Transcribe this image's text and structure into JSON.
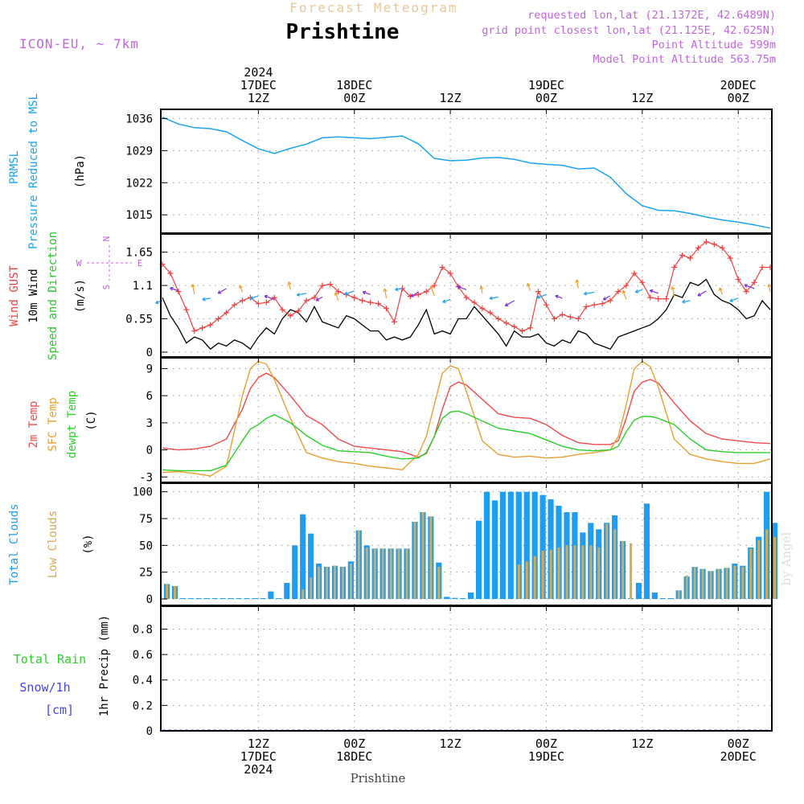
{
  "header": {
    "supertitle": "Forecast Meteogram",
    "title": "Prishtine",
    "model": "ICON-EU, ~ 7km",
    "requested": "requested lon,lat (21.1372E, 42.6489N)",
    "closest": "grid point closest lon,lat (21.125E, 42.625N)",
    "point_alt": "Point Altitude 599m",
    "model_alt": "Model Point Altitude 563.75m",
    "footer": "Prishtine",
    "watermark": "by Angel"
  },
  "colors": {
    "pressure": "#1aa3f0",
    "gust": "#f04040",
    "wind10": "#000000",
    "windarrow": "#2cc82c",
    "temp2m": "#f04a4a",
    "sfctemp": "#e8a030",
    "dewpt": "#2ad02a",
    "totalcloud": "#1e9ef0",
    "lowcloud": "#d4aa55",
    "rain": "#2ad02a",
    "snow": "#4444ee",
    "label_purple": "#c066e0"
  },
  "time_axis": {
    "top_labels": [
      {
        "hour": 12,
        "lines": [
          "2024",
          "17DEC",
          "12Z"
        ]
      },
      {
        "hour": 24,
        "lines": [
          "18DEC",
          "00Z"
        ]
      },
      {
        "hour": 36,
        "lines": [
          "12Z"
        ]
      },
      {
        "hour": 48,
        "lines": [
          "19DEC",
          "00Z"
        ]
      },
      {
        "hour": 60,
        "lines": [
          "12Z"
        ]
      },
      {
        "hour": 72,
        "lines": [
          "20DEC",
          "00Z"
        ]
      }
    ],
    "bottom_labels": [
      {
        "hour": 12,
        "lines": [
          "12Z",
          "17DEC",
          "2024"
        ]
      },
      {
        "hour": 24,
        "lines": [
          "00Z",
          "18DEC"
        ]
      },
      {
        "hour": 36,
        "lines": [
          "12Z"
        ]
      },
      {
        "hour": 48,
        "lines": [
          "00Z",
          "19DEC"
        ]
      },
      {
        "hour": 60,
        "lines": [
          "12Z"
        ]
      },
      {
        "hour": 72,
        "lines": [
          "00Z",
          "20DEC"
        ]
      }
    ]
  },
  "panels": {
    "pressure": {
      "labels": [
        "PRMSL",
        "Pressure Reduced to MSL"
      ],
      "unit": "(hPa)",
      "ticks": [
        "1036",
        "1029",
        "1022",
        "1015"
      ]
    },
    "wind": {
      "labels": [
        "Wind GUST",
        "10m Wind",
        "Speed and Direction"
      ],
      "unit": "(m/s)",
      "ticks": [
        "1.65",
        "1.1",
        "0.55",
        "0"
      ],
      "compass": [
        "N",
        "W",
        "E",
        "S"
      ]
    },
    "temp": {
      "labels": [
        "2m Temp",
        "SFC Temp",
        "dewpt Temp"
      ],
      "unit": "(C)",
      "ticks": [
        "9",
        "6",
        "3",
        "0",
        "-3"
      ]
    },
    "cloud": {
      "labels": [
        "Total Clouds",
        "Low Clouds"
      ],
      "unit": "(%)",
      "ticks": [
        "100",
        "75",
        "50",
        "25",
        "0"
      ]
    },
    "precip": {
      "labels": [
        "Total Rain",
        "Snow/1h",
        "[cm]"
      ],
      "unit": "1hr Precip (mm)",
      "ticks": [
        "0.8",
        "0.6",
        "0.4",
        "0.2",
        "0"
      ]
    }
  },
  "chart_data": [
    {
      "type": "line",
      "name": "pressure",
      "x": [
        0,
        2,
        4,
        6,
        8,
        10,
        12,
        14,
        16,
        18,
        20,
        22,
        24,
        26,
        28,
        30,
        32,
        34,
        36,
        38,
        40,
        42,
        44,
        46,
        48,
        50,
        52,
        54,
        56,
        58,
        60,
        62,
        64,
        66,
        68,
        70,
        72,
        74,
        76
      ],
      "series": [
        {
          "name": "PRMSL",
          "values": [
            1036.3,
            1034.8,
            1034.0,
            1033.8,
            1033.1,
            1031.2,
            1029.4,
            1028.4,
            1029.5,
            1030.4,
            1031.8,
            1032.0,
            1031.8,
            1031.6,
            1031.9,
            1032.2,
            1030.5,
            1027.3,
            1026.8,
            1026.9,
            1027.4,
            1027.5,
            1027.1,
            1026.3,
            1026.0,
            1025.8,
            1025.0,
            1025.2,
            1023.2,
            1019.6,
            1017.0,
            1016.0,
            1015.9,
            1015.3,
            1014.5,
            1013.9,
            1013.4,
            1012.8,
            1012.1
          ]
        }
      ],
      "ylim": [
        1011,
        1038
      ]
    },
    {
      "type": "line",
      "name": "wind",
      "x": [
        0,
        1,
        2,
        3,
        4,
        5,
        6,
        7,
        8,
        9,
        10,
        11,
        12,
        13,
        14,
        15,
        16,
        17,
        18,
        19,
        20,
        21,
        22,
        23,
        24,
        25,
        26,
        27,
        28,
        29,
        30,
        31,
        32,
        33,
        34,
        35,
        36,
        37,
        38,
        39,
        40,
        41,
        42,
        43,
        44,
        45,
        46,
        47,
        48,
        49,
        50,
        51,
        52,
        53,
        54,
        55,
        56,
        57,
        58,
        59,
        60,
        61,
        62,
        63,
        64,
        65,
        66,
        67,
        68,
        69,
        70,
        71,
        72,
        73,
        74,
        75,
        76
      ],
      "series": [
        {
          "name": "Wind GUST",
          "values": [
            1.45,
            1.3,
            1.0,
            0.7,
            0.35,
            0.4,
            0.45,
            0.55,
            0.65,
            0.78,
            0.85,
            0.9,
            0.8,
            0.82,
            0.9,
            0.7,
            0.6,
            0.68,
            0.85,
            0.9,
            1.1,
            1.12,
            1.0,
            0.95,
            0.9,
            0.85,
            0.82,
            0.8,
            0.72,
            0.5,
            1.05,
            0.92,
            0.95,
            1.0,
            1.1,
            1.4,
            1.3,
            1.08,
            0.9,
            0.82,
            0.72,
            0.65,
            0.55,
            0.48,
            0.42,
            0.35,
            0.4,
            1.0,
            0.78,
            0.55,
            0.62,
            0.58,
            0.55,
            0.75,
            0.78,
            0.8,
            0.85,
            1.0,
            1.1,
            1.3,
            1.15,
            0.9,
            0.88,
            0.88,
            1.4,
            1.6,
            1.55,
            1.72,
            1.82,
            1.78,
            1.72,
            1.55,
            1.2,
            1.0,
            1.15,
            1.4,
            1.4
          ]
        },
        {
          "name": "10m Wind",
          "values": [
            0.9,
            0.6,
            0.4,
            0.15,
            0.25,
            0.2,
            0.05,
            0.15,
            0.1,
            0.2,
            0.15,
            0.05,
            0.25,
            0.4,
            0.3,
            0.55,
            0.7,
            0.65,
            0.5,
            0.75,
            0.5,
            0.45,
            0.4,
            0.6,
            0.55,
            0.45,
            0.35,
            0.35,
            0.2,
            0.25,
            0.2,
            0.25,
            0.45,
            0.7,
            0.3,
            0.35,
            0.3,
            0.55,
            0.55,
            0.75,
            0.6,
            0.45,
            0.3,
            0.1,
            0.35,
            0.25,
            0.25,
            0.3,
            0.15,
            0.1,
            0.2,
            0.15,
            0.35,
            0.3,
            0.15,
            0.1,
            0.05,
            0.25,
            0.3,
            0.35,
            0.4,
            0.45,
            0.55,
            0.7,
            0.95,
            0.9,
            1.15,
            1.1,
            1.2,
            0.95,
            0.85,
            0.8,
            0.7,
            0.55,
            0.6,
            0.85,
            0.7
          ]
        }
      ],
      "ylim": [
        0,
        1.95
      ]
    },
    {
      "type": "line",
      "name": "temperature",
      "x": [
        0,
        2,
        4,
        6,
        8,
        10,
        11,
        12,
        13,
        14,
        16,
        18,
        20,
        22,
        24,
        26,
        28,
        30,
        32,
        33,
        34,
        35,
        36,
        37,
        38,
        40,
        42,
        44,
        46,
        48,
        50,
        52,
        54,
        56,
        57,
        58,
        59,
        60,
        61,
        62,
        64,
        66,
        68,
        70,
        72,
        74,
        76
      ],
      "series": [
        {
          "name": "2m Temp",
          "values": [
            0.2,
            0.0,
            0.1,
            0.4,
            1.2,
            4.5,
            6.8,
            8.0,
            8.5,
            8.0,
            6.0,
            3.8,
            2.8,
            1.2,
            0.4,
            0.2,
            0.0,
            -0.2,
            -0.8,
            -0.4,
            1.5,
            4.5,
            7.0,
            7.5,
            7.2,
            5.6,
            4.0,
            3.6,
            3.5,
            2.8,
            1.6,
            0.8,
            0.6,
            0.6,
            1.0,
            3.5,
            6.5,
            7.5,
            7.8,
            7.4,
            5.2,
            3.2,
            1.8,
            1.2,
            1.0,
            0.8,
            0.7
          ]
        },
        {
          "name": "SFC Temp",
          "values": [
            -2.5,
            -2.4,
            -2.6,
            -2.9,
            -1.8,
            6.0,
            9.0,
            9.8,
            9.5,
            7.8,
            3.5,
            -0.3,
            -0.9,
            -1.3,
            -1.5,
            -1.8,
            -2.0,
            -2.2,
            -0.5,
            1.5,
            5.0,
            8.5,
            9.3,
            9.0,
            6.5,
            1.0,
            -0.5,
            -0.8,
            -0.7,
            -0.9,
            -0.8,
            -0.5,
            -0.3,
            0.0,
            1.5,
            5.0,
            9.0,
            9.8,
            9.2,
            7.0,
            1.2,
            -0.5,
            -1.0,
            -1.3,
            -1.5,
            -1.5,
            -1.0
          ]
        },
        {
          "name": "dewpt Temp",
          "values": [
            -2.2,
            -2.3,
            -2.3,
            -2.3,
            -1.7,
            1.0,
            2.3,
            2.8,
            3.5,
            3.9,
            3.0,
            1.6,
            0.5,
            -0.1,
            -0.2,
            -0.3,
            -0.7,
            -1.0,
            -0.9,
            -0.3,
            1.5,
            3.5,
            4.2,
            4.3,
            4.0,
            3.2,
            2.4,
            2.1,
            1.8,
            1.1,
            0.4,
            0.0,
            -0.1,
            0.0,
            0.4,
            2.0,
            3.3,
            3.7,
            3.7,
            3.5,
            2.8,
            1.2,
            0.0,
            -0.2,
            -0.3,
            -0.3,
            -0.3
          ]
        }
      ],
      "ylim": [
        -3.5,
        10
      ]
    },
    {
      "type": "bar",
      "name": "clouds",
      "x": [
        0,
        1,
        2,
        3,
        4,
        5,
        6,
        7,
        8,
        9,
        10,
        11,
        12,
        13,
        14,
        15,
        16,
        17,
        18,
        19,
        20,
        21,
        22,
        23,
        24,
        25,
        26,
        27,
        28,
        29,
        30,
        31,
        32,
        33,
        34,
        35,
        36,
        37,
        38,
        39,
        40,
        41,
        42,
        43,
        44,
        45,
        46,
        47,
        48,
        49,
        50,
        51,
        52,
        53,
        54,
        55,
        56,
        57,
        58,
        59,
        60,
        61,
        62,
        63,
        64,
        65,
        66,
        67,
        68,
        69,
        70,
        71,
        72,
        73,
        74,
        75,
        76
      ],
      "series": [
        {
          "name": "Total Clouds",
          "values": [
            14,
            12,
            0,
            0,
            0,
            0,
            0,
            0,
            0,
            0,
            0,
            0,
            0,
            7,
            0,
            15,
            50,
            79,
            61,
            33,
            30,
            31,
            30,
            35,
            64,
            50,
            47,
            47,
            47,
            47,
            47,
            72,
            81,
            77,
            34,
            2,
            1,
            0,
            6,
            73,
            100,
            92,
            100,
            100,
            100,
            100,
            100,
            97,
            93,
            87,
            81,
            81,
            62,
            71,
            65,
            71,
            78,
            54,
            0,
            15,
            89,
            6,
            0,
            0,
            8,
            21,
            30,
            28,
            26,
            28,
            29,
            33,
            31,
            48,
            58,
            100,
            71
          ]
        },
        {
          "name": "Low Clouds",
          "values": [
            14,
            12,
            0,
            0,
            0,
            0,
            0,
            0,
            0,
            0,
            0,
            0,
            0,
            0,
            0,
            0,
            0,
            9,
            20,
            30,
            30,
            31,
            30,
            33,
            64,
            48,
            47,
            47,
            47,
            47,
            47,
            72,
            81,
            77,
            30,
            0,
            0,
            0,
            0,
            0,
            0,
            0,
            0,
            0,
            32,
            35,
            40,
            45,
            46,
            48,
            50,
            50,
            50,
            50,
            48,
            70,
            65,
            54,
            52,
            0,
            0,
            0,
            0,
            0,
            8,
            22,
            30,
            28,
            26,
            28,
            29,
            31,
            30,
            47,
            55,
            65,
            58
          ]
        }
      ],
      "ylim": [
        0,
        105
      ]
    },
    {
      "type": "bar",
      "name": "precip",
      "x": [
        0,
        76
      ],
      "series": [
        {
          "name": "Total Rain",
          "values": [
            0,
            0
          ]
        }
      ],
      "ylim": [
        0,
        1.0
      ]
    }
  ]
}
